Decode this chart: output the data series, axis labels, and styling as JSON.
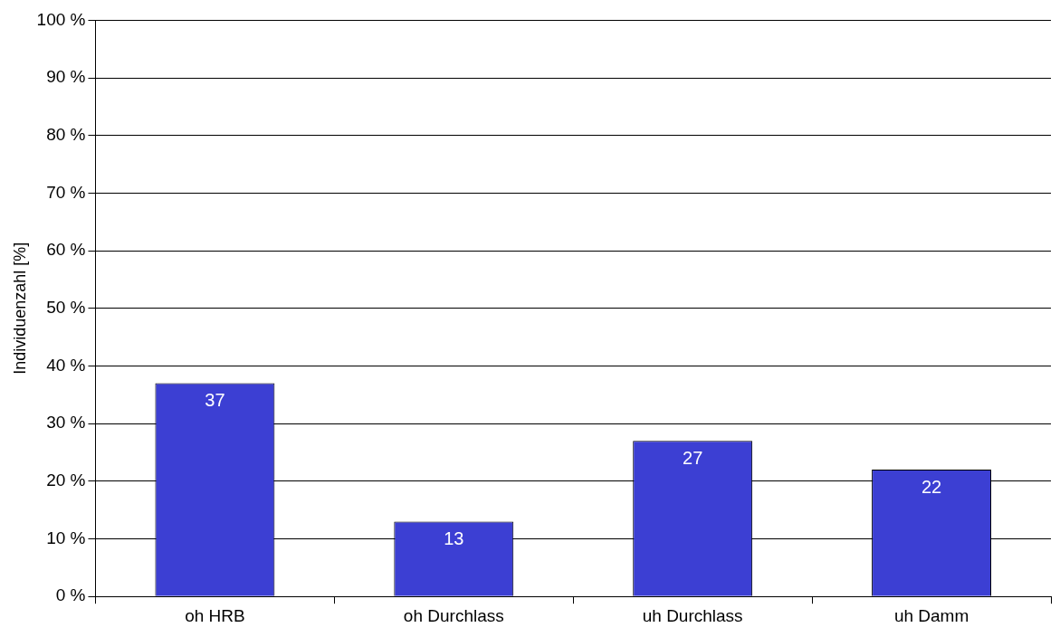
{
  "chart_data": {
    "type": "bar",
    "ylabel": "Individuenzahl [%]",
    "categories": [
      "oh HRB",
      "oh Durchlass",
      "uh Durchlass",
      "uh Damm"
    ],
    "values": [
      37,
      13,
      27,
      22
    ],
    "color": "#3c3fd3",
    "data_labels": true,
    "ylim": [
      0,
      100
    ],
    "yticks": [
      {
        "value": 0,
        "label": "0 %"
      },
      {
        "value": 10,
        "label": "10 %"
      },
      {
        "value": 20,
        "label": "20 %"
      },
      {
        "value": 30,
        "label": "30 %"
      },
      {
        "value": 40,
        "label": "40 %"
      },
      {
        "value": 50,
        "label": "50 %"
      },
      {
        "value": 60,
        "label": "60 %"
      },
      {
        "value": 70,
        "label": "70 %"
      },
      {
        "value": 80,
        "label": "80 %"
      },
      {
        "value": 90,
        "label": "90 %"
      },
      {
        "value": 100,
        "label": "100 %"
      }
    ],
    "grid": "y",
    "legend": false
  }
}
